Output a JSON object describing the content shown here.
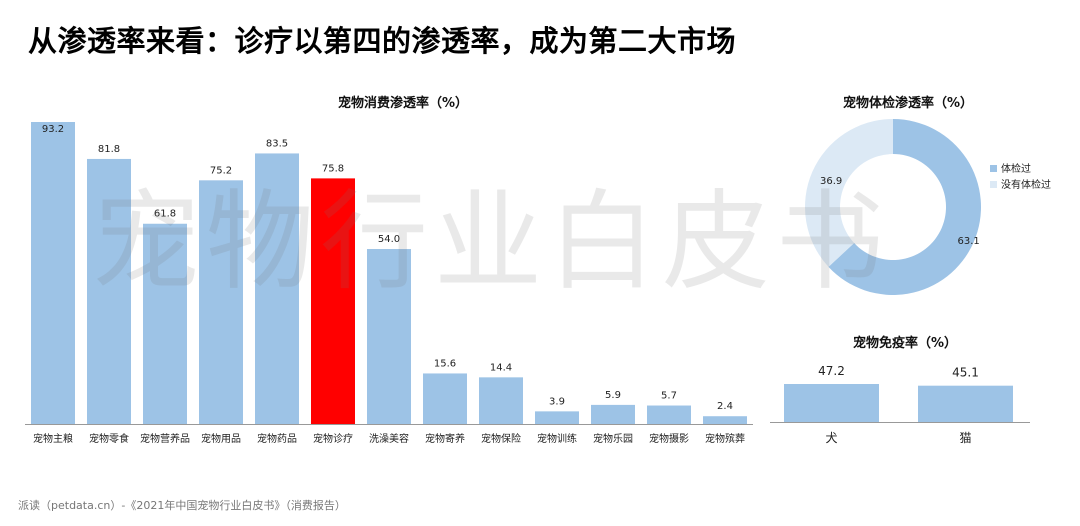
{
  "page": {
    "title": "从渗透率来看：诊疗以第四的渗透率，成为第二大市场",
    "watermark": "宠物行业白皮书",
    "footer": "派读（petdata.cn）-《2021年中国宠物行业白皮书》（消费报告）"
  },
  "colors": {
    "bar": "#9dc3e6",
    "highlight": "#ff0000",
    "donut_light": "#dce9f5",
    "axis": "#999999"
  },
  "chart_data": [
    {
      "type": "bar",
      "title": "宠物消费渗透率（%）",
      "categories": [
        "宠物主粮",
        "宠物零食",
        "宠物营养品",
        "宠物用品",
        "宠物药品",
        "宠物诊疗",
        "洗澡美容",
        "宠物寄养",
        "宠物保险",
        "宠物训练",
        "宠物乐园",
        "宠物摄影",
        "宠物殡葬"
      ],
      "values": [
        93.2,
        81.8,
        61.8,
        75.2,
        83.5,
        75.8,
        54.0,
        15.6,
        14.4,
        3.9,
        5.9,
        5.7,
        2.4
      ],
      "value_labels": [
        "93.2",
        "81.8",
        "61.8",
        "75.2",
        "83.5",
        "75.8",
        "54.0",
        "15.6",
        "14.4",
        "3.9",
        "5.9",
        "5.7",
        "2.4"
      ],
      "highlight_category": "宠物诊疗",
      "ylim": [
        0,
        93.2
      ],
      "grid": false
    },
    {
      "type": "pie",
      "title": "宠物体检渗透率（%）",
      "labels": [
        "体检过",
        "没有体检过"
      ],
      "values": [
        63.1,
        36.9
      ],
      "value_labels": [
        "63.1",
        "36.9"
      ],
      "legend": "right"
    },
    {
      "type": "bar",
      "title": "宠物免疫率（%）",
      "categories": [
        "犬",
        "猫"
      ],
      "values": [
        47.2,
        45.1
      ],
      "value_labels": [
        "47.2",
        "45.1"
      ],
      "grid": false
    }
  ]
}
